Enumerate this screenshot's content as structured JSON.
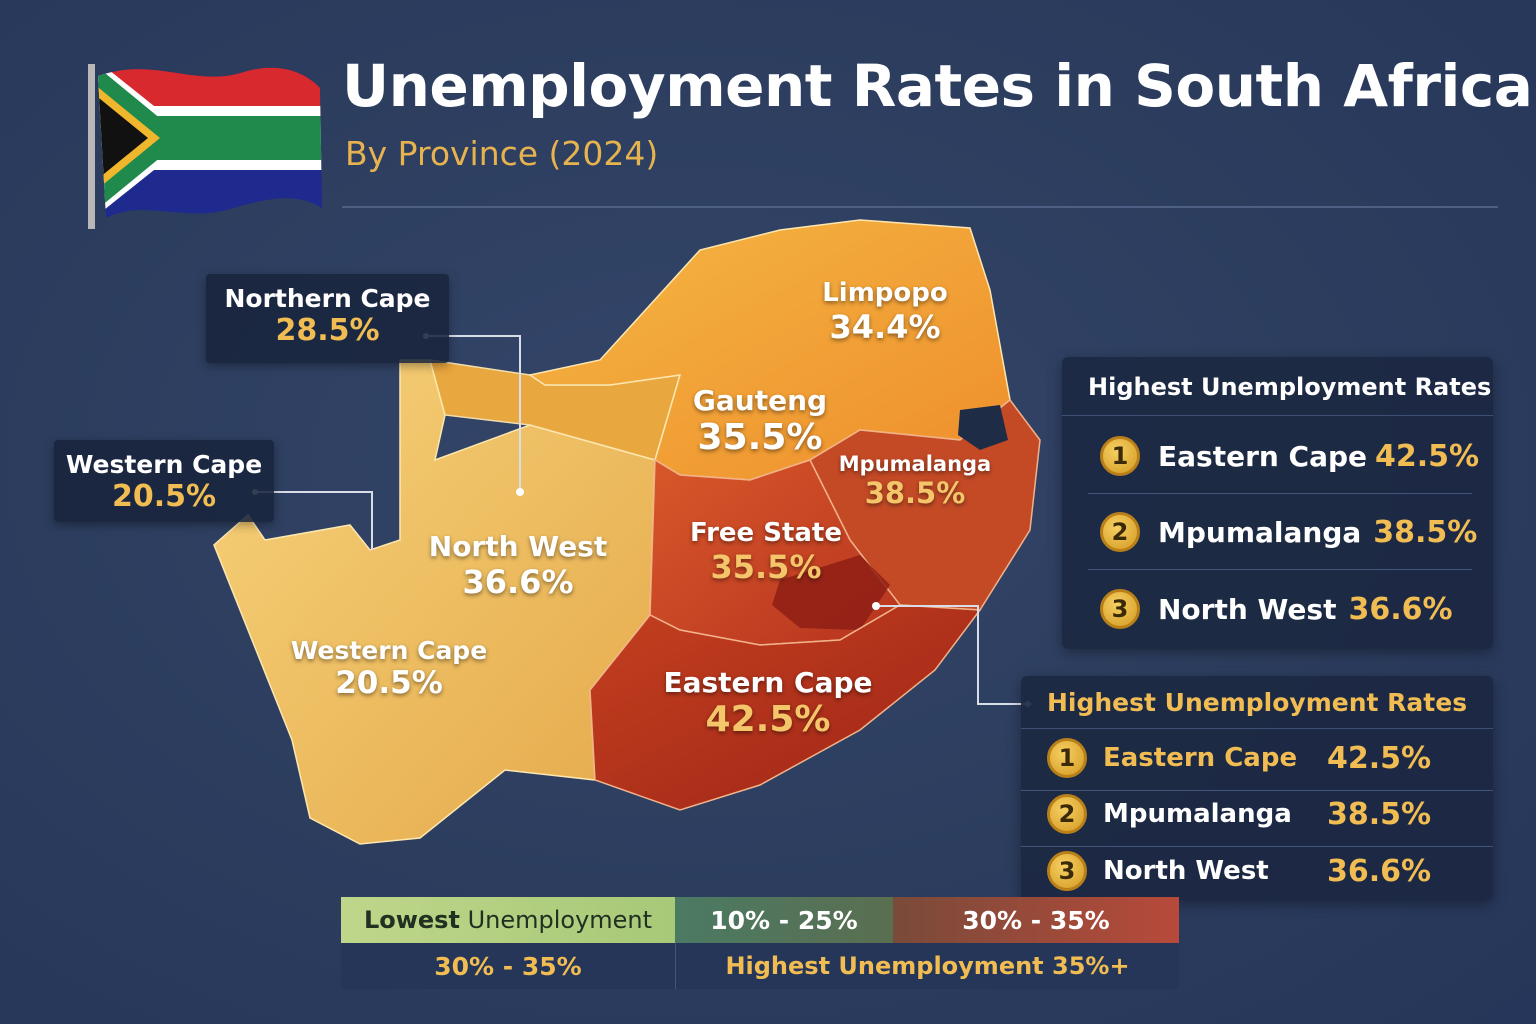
{
  "header": {
    "title": "Unemployment Rates in South Africa",
    "subtitle": "By Province (2024)"
  },
  "colors": {
    "accent": "#f1bd53",
    "low": "#f3c664",
    "mid": "#f09a33",
    "high": "#b9351e",
    "background": "#2c3d5e"
  },
  "map": {
    "provinces": [
      {
        "name": "Limpopo",
        "value": "34.4%"
      },
      {
        "name": "Gauteng",
        "value": "35.5%"
      },
      {
        "name": "Mpumalanga",
        "value": "38.5%"
      },
      {
        "name": "Free State",
        "value": "35.5%"
      },
      {
        "name": "North West",
        "value": "36.6%"
      },
      {
        "name": "Western Cape",
        "value": "20.5%"
      },
      {
        "name": "Eastern Cape",
        "value": "42.5%"
      }
    ]
  },
  "callouts": {
    "northern_cape": {
      "name": "Northern Cape",
      "value": "28.5%"
    },
    "western_cape": {
      "name": "Western Cape",
      "value": "20.5%"
    }
  },
  "panel_top": {
    "heading": "Highest Unemployment Rates",
    "items": [
      {
        "rank": "1",
        "name": "Eastern Cape",
        "value": "42.5%"
      },
      {
        "rank": "2",
        "name": "Mpumalanga",
        "value": "38.5%"
      },
      {
        "rank": "3",
        "name": "North West",
        "value": "36.6%"
      }
    ]
  },
  "panel_bottom": {
    "heading": "Highest Unemployment Rates",
    "items": [
      {
        "rank": "1",
        "name": "Eastern Cape",
        "value": "42.5%"
      },
      {
        "rank": "2",
        "name": "Mpumalanga",
        "value": "38.5%"
      },
      {
        "rank": "3",
        "name": "North West",
        "value": "36.6%"
      }
    ]
  },
  "legend": {
    "low_label_bold": "Lowest",
    "low_label_rest": " Unemployment",
    "range_1": "10% - 25%",
    "range_2": "30% - 35%",
    "range_3": "30% - 35%",
    "high_label": "Highest Unemployment 35%+"
  },
  "icons": {
    "flag": "south-africa-flag-icon",
    "rank_badge": "rank-badge-icon"
  }
}
